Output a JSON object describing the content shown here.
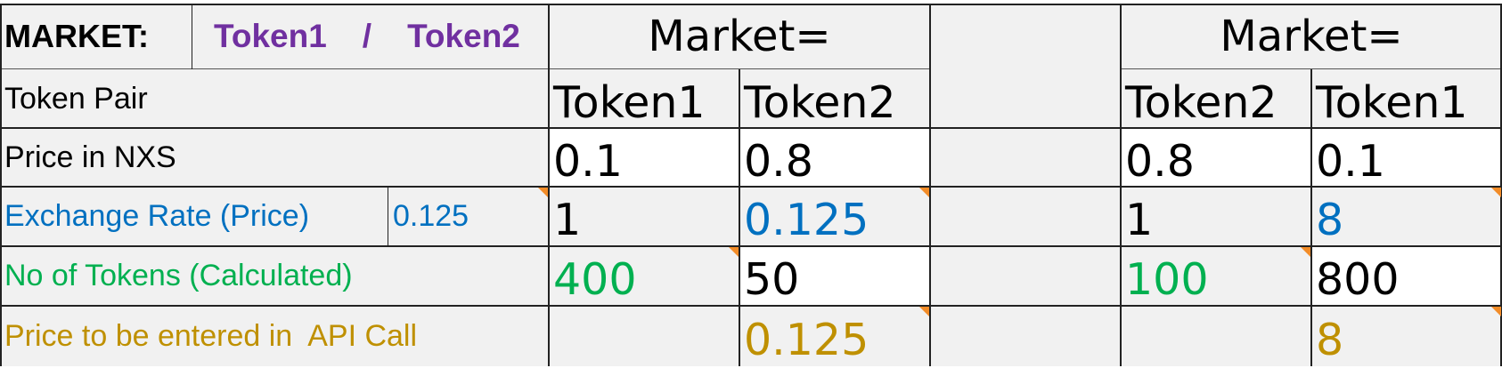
{
  "market_row": {
    "label": "MARKET:",
    "token_a": "Token1",
    "separator": "/",
    "token_b": "Token2",
    "header_left": "Market=",
    "header_right": "Market="
  },
  "rows": {
    "token_pair": {
      "label": "Token Pair",
      "left_a": "Token1",
      "left_b": "Token2",
      "right_a": "Token2",
      "right_b": "Token1"
    },
    "price_nxs": {
      "label": "Price in NXS",
      "left_a": "0.1",
      "left_b": "0.8",
      "right_a": "0.8",
      "right_b": "0.1"
    },
    "exchange_rate": {
      "label": "Exchange Rate (Price)",
      "rate": "0.125",
      "left_a": "1",
      "left_b": "0.125",
      "right_a": "1",
      "right_b": "8"
    },
    "num_tokens": {
      "label": "No of Tokens (Calculated)",
      "left_a": "400",
      "left_b": "50",
      "right_a": "100",
      "right_b": "800"
    },
    "api_price": {
      "label": "Price to be entered in  API Call",
      "left_b": "0.125",
      "right_b": "8"
    }
  },
  "colors": {
    "token_names": "#7030a0",
    "exchange_rate": "#0070c0",
    "calculated": "#00b050",
    "api_price": "#bf9000",
    "comment_marker": "#f28c28",
    "cell_gray": "#f1f1f1"
  }
}
